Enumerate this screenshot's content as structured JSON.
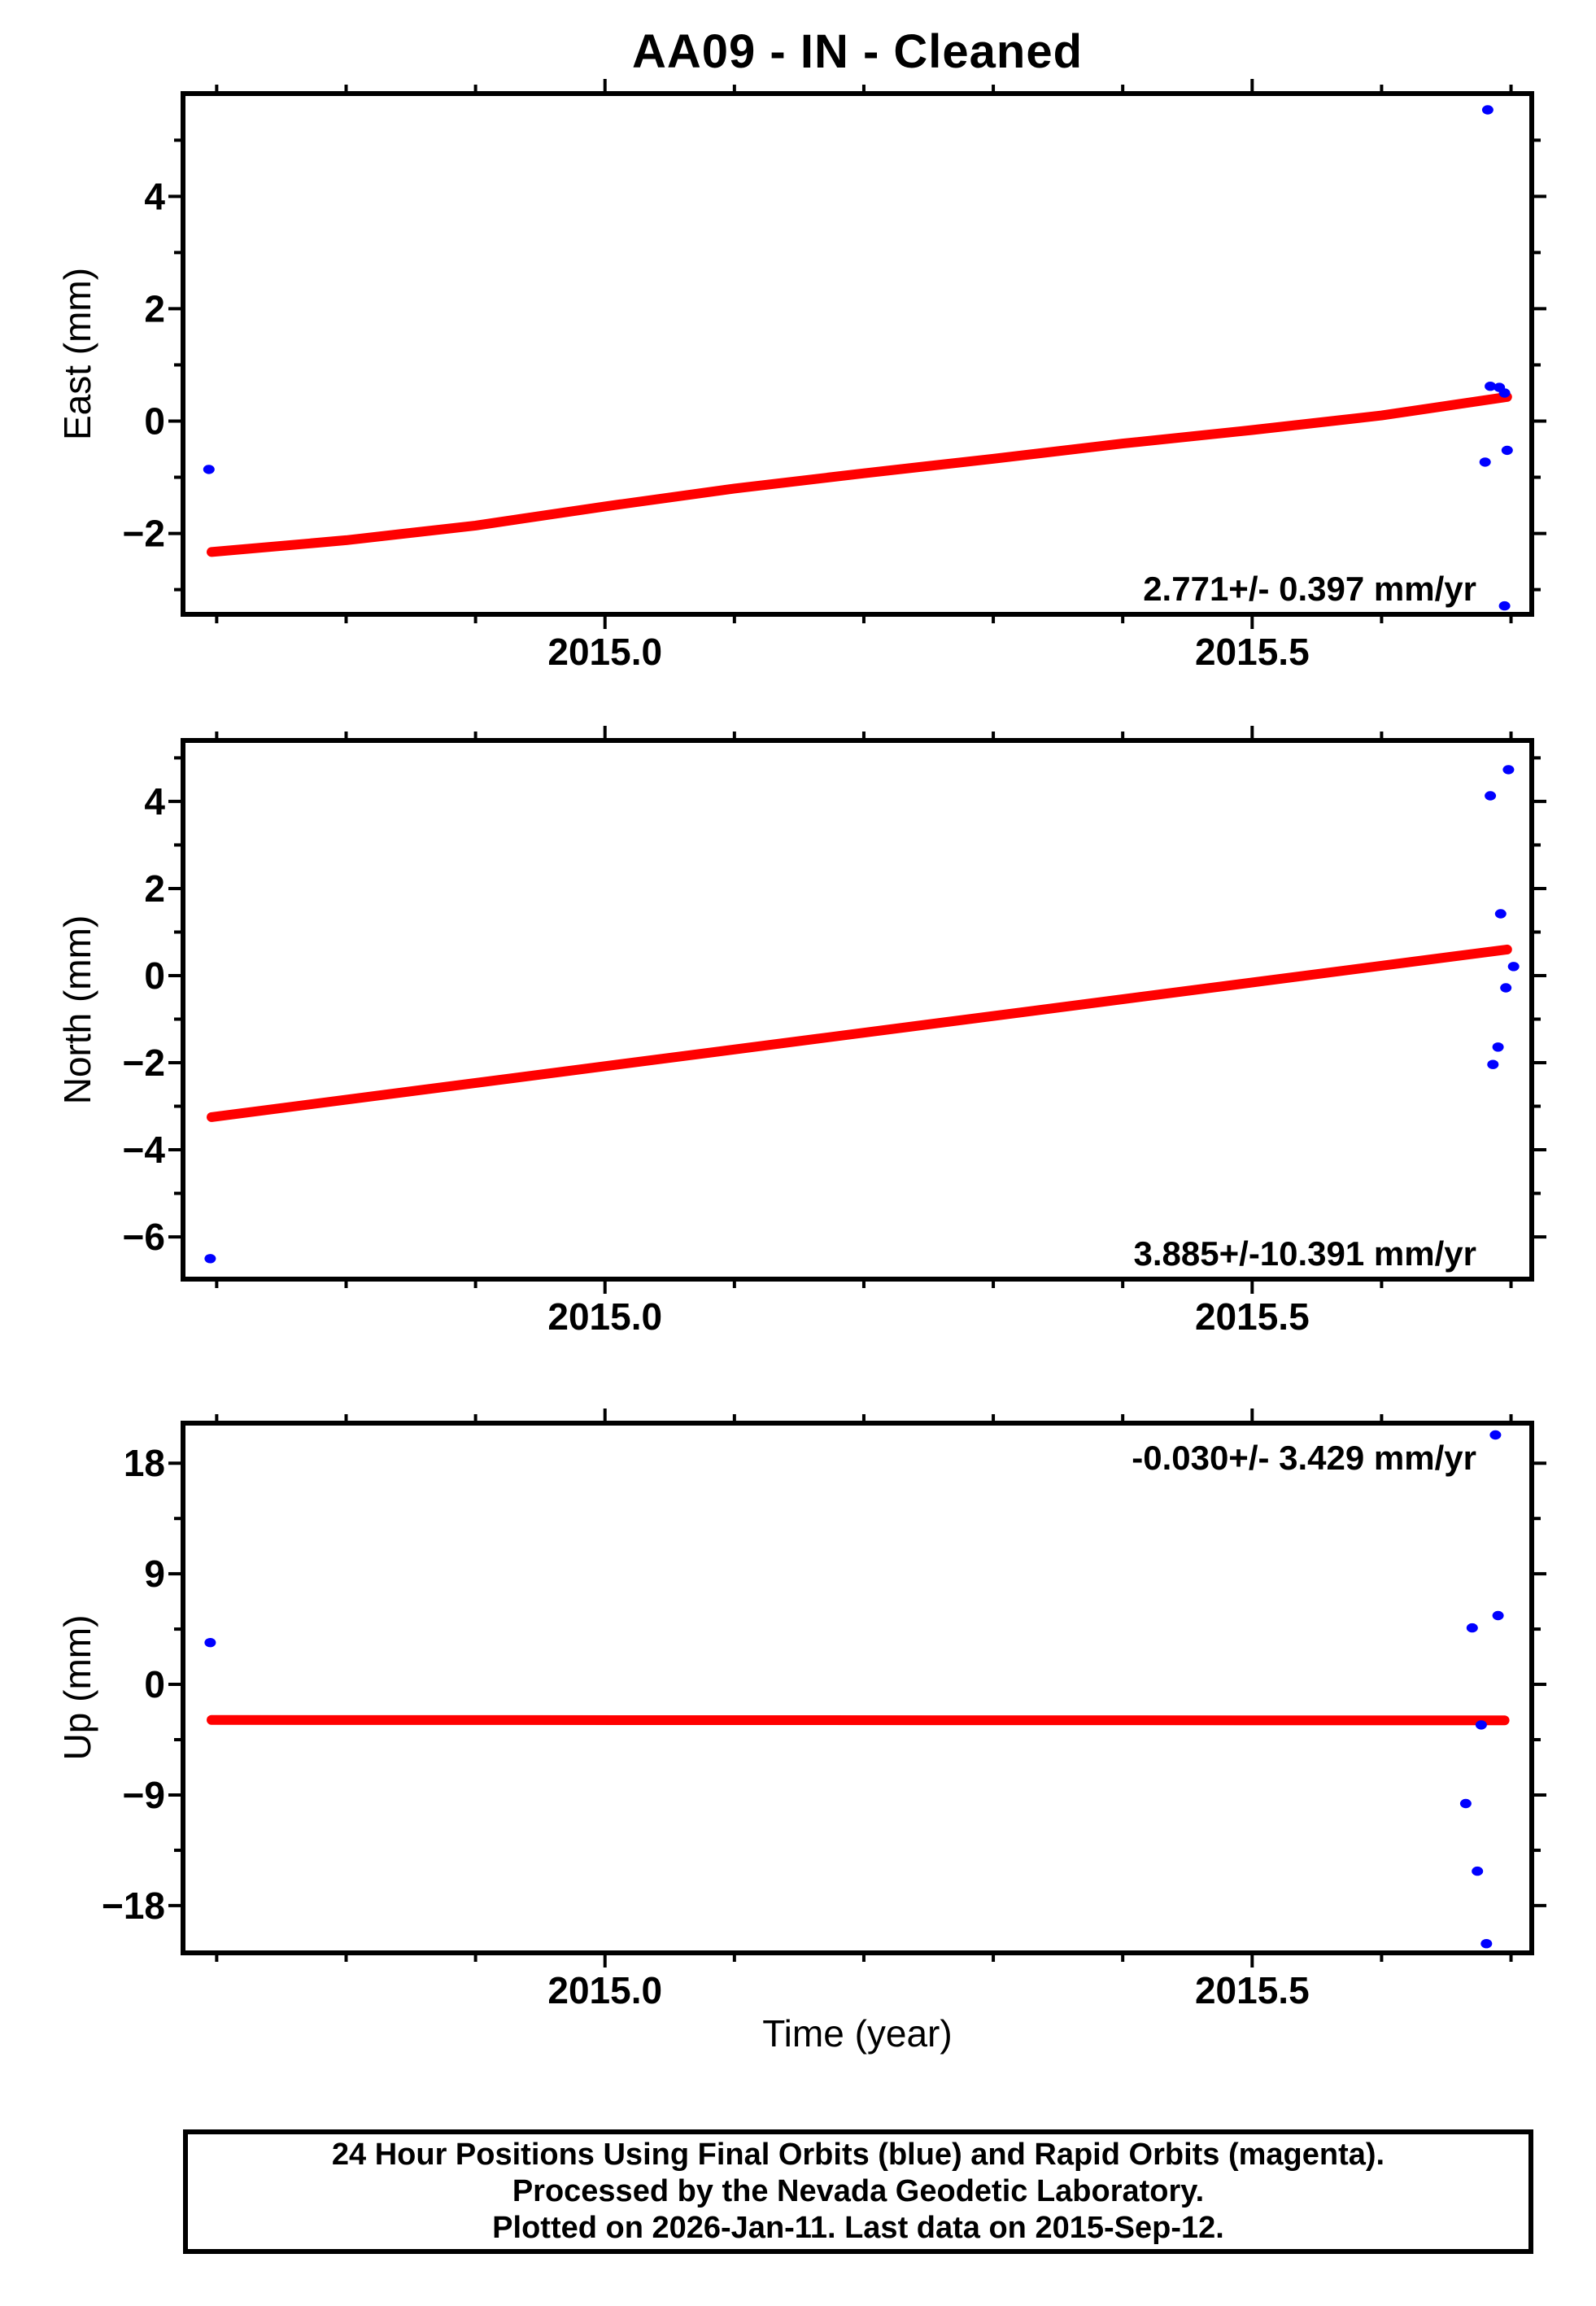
{
  "title": "AA09  - IN - Cleaned",
  "xlabel": "Time (year)",
  "colors": {
    "points": "#0000ff",
    "trend": "#ff0000",
    "frame": "#000000"
  },
  "footer": {
    "line1": "24 Hour Positions Using Final Orbits (blue) and Rapid Orbits (magenta).",
    "line2": "Processed by the Nevada Geodetic Laboratory.",
    "line3": "Plotted on 2026-Jan-11. Last data on 2015-Sep-12."
  },
  "chart_data": [
    {
      "name": "east",
      "type": "scatter",
      "ylabel": "East (mm)",
      "annotation": "2.771+/- 0.397 mm/yr",
      "annotation_corner": "bottom-right",
      "xlim": [
        2014.674,
        2015.716
      ],
      "ylim": [
        -3.44,
        5.83
      ],
      "x_ticks": [
        {
          "v": 2015.0,
          "label": "2015.0"
        },
        {
          "v": 2015.5,
          "label": "2015.5"
        }
      ],
      "x_minor": [
        2014.7,
        2014.8,
        2014.9,
        2015.0,
        2015.1,
        2015.2,
        2015.3,
        2015.4,
        2015.5,
        2015.6,
        2015.7
      ],
      "y_ticks": [
        {
          "v": 4,
          "label": "4"
        },
        {
          "v": 2,
          "label": "2"
        },
        {
          "v": 0,
          "label": "0"
        },
        {
          "v": -2,
          "label": "−2"
        }
      ],
      "y_minor": [
        5,
        3,
        1,
        -1,
        -3
      ],
      "points": [
        [
          2014.694,
          -0.86
        ],
        [
          2015.682,
          5.54
        ],
        [
          2015.684,
          0.62
        ],
        [
          2015.691,
          0.6
        ],
        [
          2015.695,
          0.5
        ],
        [
          2015.68,
          -0.73
        ],
        [
          2015.697,
          -0.52
        ],
        [
          2015.695,
          -3.29
        ]
      ],
      "trend": [
        [
          2014.696,
          -2.33
        ],
        [
          2014.8,
          -2.12
        ],
        [
          2014.9,
          -1.86
        ],
        [
          2015.0,
          -1.52
        ],
        [
          2015.1,
          -1.2
        ],
        [
          2015.2,
          -0.93
        ],
        [
          2015.3,
          -0.67
        ],
        [
          2015.4,
          -0.4
        ],
        [
          2015.5,
          -0.16
        ],
        [
          2015.6,
          0.1
        ],
        [
          2015.697,
          0.43
        ]
      ]
    },
    {
      "name": "north",
      "type": "scatter",
      "ylabel": "North (mm)",
      "annotation": "3.885+/-10.391 mm/yr",
      "annotation_corner": "bottom-right",
      "xlim": [
        2014.674,
        2015.716
      ],
      "ylim": [
        -6.97,
        5.4
      ],
      "x_ticks": [
        {
          "v": 2015.0,
          "label": "2015.0"
        },
        {
          "v": 2015.5,
          "label": "2015.5"
        }
      ],
      "x_minor": [
        2014.7,
        2014.8,
        2014.9,
        2015.0,
        2015.1,
        2015.2,
        2015.3,
        2015.4,
        2015.5,
        2015.6,
        2015.7
      ],
      "y_ticks": [
        {
          "v": 4,
          "label": "4"
        },
        {
          "v": 2,
          "label": "2"
        },
        {
          "v": 0,
          "label": "0"
        },
        {
          "v": -2,
          "label": "−2"
        },
        {
          "v": -4,
          "label": "−4"
        },
        {
          "v": -6,
          "label": "−6"
        }
      ],
      "y_minor": [
        5,
        3,
        1,
        -1,
        -3,
        -5
      ],
      "points": [
        [
          2014.695,
          -6.5
        ],
        [
          2015.698,
          4.73
        ],
        [
          2015.684,
          4.13
        ],
        [
          2015.692,
          1.42
        ],
        [
          2015.702,
          0.21
        ],
        [
          2015.696,
          -0.28
        ],
        [
          2015.69,
          -1.64
        ],
        [
          2015.686,
          -2.04
        ]
      ],
      "trend": [
        [
          2014.696,
          -3.25
        ],
        [
          2015.697,
          0.6
        ]
      ]
    },
    {
      "name": "up",
      "type": "scatter",
      "ylabel": "Up (mm)",
      "annotation": "-0.030+/- 3.429 mm/yr",
      "annotation_corner": "top-right",
      "xlim": [
        2014.674,
        2015.716
      ],
      "ylim": [
        -21.85,
        21.26
      ],
      "x_ticks": [
        {
          "v": 2015.0,
          "label": "2015.0"
        },
        {
          "v": 2015.5,
          "label": "2015.5"
        }
      ],
      "x_minor": [
        2014.7,
        2014.8,
        2014.9,
        2015.0,
        2015.1,
        2015.2,
        2015.3,
        2015.4,
        2015.5,
        2015.6,
        2015.7
      ],
      "y_ticks": [
        {
          "v": 18,
          "label": "18"
        },
        {
          "v": 9,
          "label": "9"
        },
        {
          "v": 0,
          "label": "0"
        },
        {
          "v": -9,
          "label": "−9"
        },
        {
          "v": -18,
          "label": "−18"
        }
      ],
      "y_minor": [
        13.5,
        4.5,
        -4.5,
        -13.5
      ],
      "points": [
        [
          2014.695,
          3.4
        ],
        [
          2015.688,
          20.3
        ],
        [
          2015.69,
          5.6
        ],
        [
          2015.67,
          4.6
        ],
        [
          2015.677,
          -3.3
        ],
        [
          2015.665,
          -9.7
        ],
        [
          2015.674,
          -15.2
        ],
        [
          2015.681,
          -21.1
        ]
      ],
      "trend": [
        [
          2014.696,
          -2.9
        ],
        [
          2015.695,
          -2.93
        ]
      ]
    }
  ]
}
